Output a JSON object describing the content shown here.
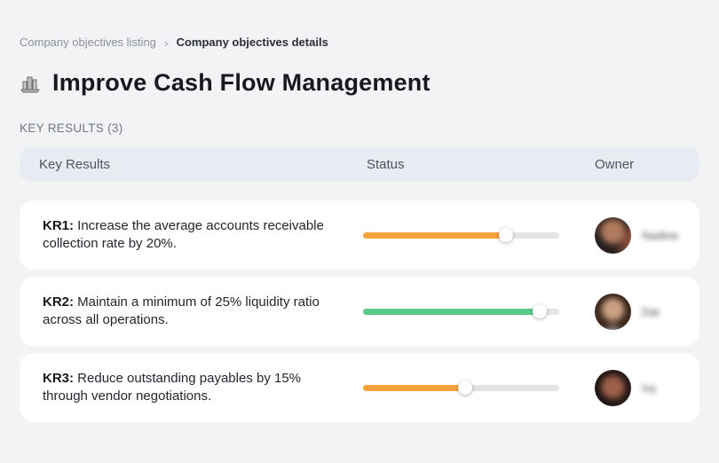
{
  "breadcrumb": {
    "items": [
      {
        "label": "Company objectives listing"
      },
      {
        "label": "Company objectives details"
      }
    ],
    "separator": "›"
  },
  "header": {
    "icon": "building-chart-icon",
    "title": "Improve Cash Flow Management"
  },
  "section": {
    "label": "KEY RESULTS (3)"
  },
  "table": {
    "columns": {
      "key_results": "Key Results",
      "status": "Status",
      "owner": "Owner"
    },
    "rows": [
      {
        "kr_label": "KR1:",
        "description": "Increase the average accounts receivable collection rate by 20%.",
        "progress_percent": 73,
        "progress_color": "#F7A23B",
        "owner": {
          "name": "Nadine"
        }
      },
      {
        "kr_label": "KR2:",
        "description": "Maintain a minimum of 25% liquidity ratio across all operations.",
        "progress_percent": 90,
        "progress_color": "#56C98B",
        "owner": {
          "name": "Dai"
        }
      },
      {
        "kr_label": "KR3:",
        "description": "Reduce outstanding payables by 15% through vendor negotiations.",
        "progress_percent": 52,
        "progress_color": "#F7A23B",
        "owner": {
          "name": "Ivy"
        }
      }
    ]
  },
  "colors": {
    "page_background": "#F2F3F5",
    "card_background": "#FFFFFF",
    "table_header_background": "#E8EBF1",
    "progress_track": "#E4E4E5",
    "progress_orange": "#F7A23B",
    "progress_green": "#56C98B"
  }
}
